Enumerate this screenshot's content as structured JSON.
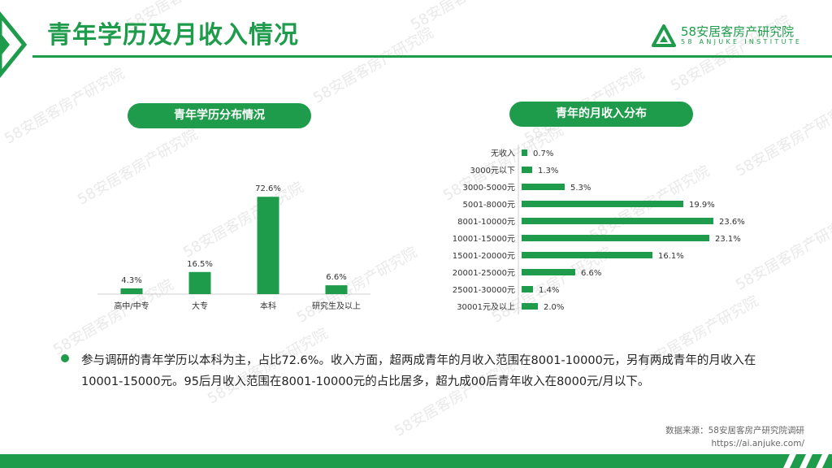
{
  "page": {
    "title": "青年学历及月收入情况"
  },
  "logo": {
    "name": "58安居客房产研究院",
    "sub": "58 ANJUKE INSTITUTE",
    "icon": "triangle-logo-icon"
  },
  "watermark": {
    "text": "58安居客房产研究院"
  },
  "sections": {
    "education_title": "青年学历分布情况",
    "income_title": "青年的月收入分布"
  },
  "chart_data": [
    {
      "type": "bar",
      "orientation": "vertical",
      "categories": [
        "高中/中专",
        "大专",
        "本科",
        "研究生及以上"
      ],
      "values": [
        4.3,
        16.5,
        72.6,
        6.6
      ],
      "value_labels": [
        "4.3%",
        "16.5%",
        "72.6%",
        "6.6%"
      ],
      "unit": "%",
      "color": "#1e9b4b",
      "ylim": [
        0,
        80
      ],
      "grid": false
    },
    {
      "type": "bar",
      "orientation": "horizontal",
      "categories": [
        "无收入",
        "3000元以下",
        "3000-5000元",
        "5001-8000元",
        "8001-10000元",
        "10001-15000元",
        "15001-20000元",
        "20001-25000元",
        "25001-30000元",
        "30001元及以上"
      ],
      "values": [
        0.7,
        1.3,
        5.3,
        19.9,
        23.6,
        23.1,
        16.1,
        6.6,
        1.4,
        2.0
      ],
      "value_labels": [
        "0.7%",
        "1.3%",
        "5.3%",
        "19.9%",
        "23.6%",
        "23.1%",
        "16.1%",
        "6.6%",
        "1.4%",
        "2.0%"
      ],
      "unit": "%",
      "color": "#1e9b4b",
      "xlim": [
        0,
        25
      ],
      "grid": false
    }
  ],
  "summary": "参与调研的青年学历以本科为主，占比72.6%。收入方面，超两成青年的月收入范围在8001-10000元，另有两成青年的月收入在10001-15000元。95后月收入范围在8001-10000元的占比居多，超九成00后青年收入在8000元/月以下。",
  "source": {
    "label": "数据来源：58安居客房产研究院调研",
    "url": "https://ai.anjuke.com/"
  },
  "colors": {
    "brand": "#1e9b4b"
  }
}
